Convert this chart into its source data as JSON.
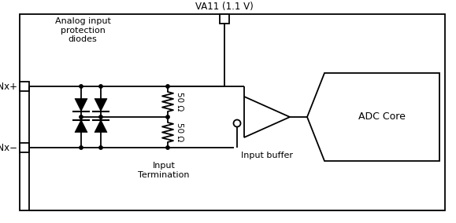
{
  "bg_color": "#ffffff",
  "line_color": "#000000",
  "va11_label": "VA11 (1.1 V)",
  "inxp_label": "INx+",
  "inxm_label": "INx−",
  "diode_label": "Analog input\nprotection\ndiodes",
  "term_label": "Input\nTermination",
  "buffer_label": "Input buffer",
  "adc_label": "ADC Core",
  "r1_label": "50 Ω",
  "r2_label": "50 Ω"
}
